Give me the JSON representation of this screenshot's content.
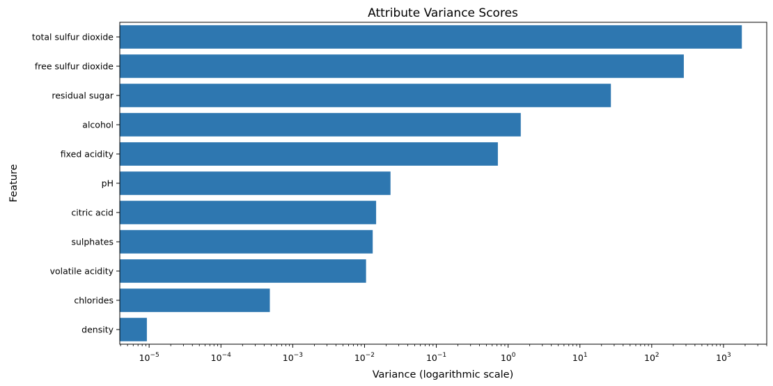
{
  "chart_data": {
    "type": "bar",
    "orientation": "horizontal",
    "title": "Attribute Variance Scores",
    "xlabel": "Variance (logarithmic scale)",
    "ylabel": "Feature",
    "x_scale": "log",
    "xlim": [
      3.9e-06,
      4000
    ],
    "x_major_ticks": [
      1e-05,
      0.0001,
      0.001,
      0.01,
      0.1,
      1,
      10,
      100,
      1000
    ],
    "x_tick_labels": [
      {
        "base": "10",
        "exp": "−5"
      },
      {
        "base": "10",
        "exp": "−4"
      },
      {
        "base": "10",
        "exp": "−3"
      },
      {
        "base": "10",
        "exp": "−2"
      },
      {
        "base": "10",
        "exp": "−1"
      },
      {
        "base": "10",
        "exp": "0"
      },
      {
        "base": "10",
        "exp": "1"
      },
      {
        "base": "10",
        "exp": "2"
      },
      {
        "base": "10",
        "exp": "3"
      }
    ],
    "categories": [
      "total sulfur dioxide",
      "free sulfur dioxide",
      "residual sugar",
      "alcohol",
      "fixed acidity",
      "pH",
      "citric acid",
      "sulphates",
      "volatile acidity",
      "chlorides",
      "density"
    ],
    "values": [
      1800,
      280,
      27,
      1.5,
      0.72,
      0.023,
      0.0145,
      0.013,
      0.0105,
      0.00048,
      9.3e-06
    ],
    "bar_color": "#2e77b0",
    "grid": false,
    "legend": "none"
  }
}
